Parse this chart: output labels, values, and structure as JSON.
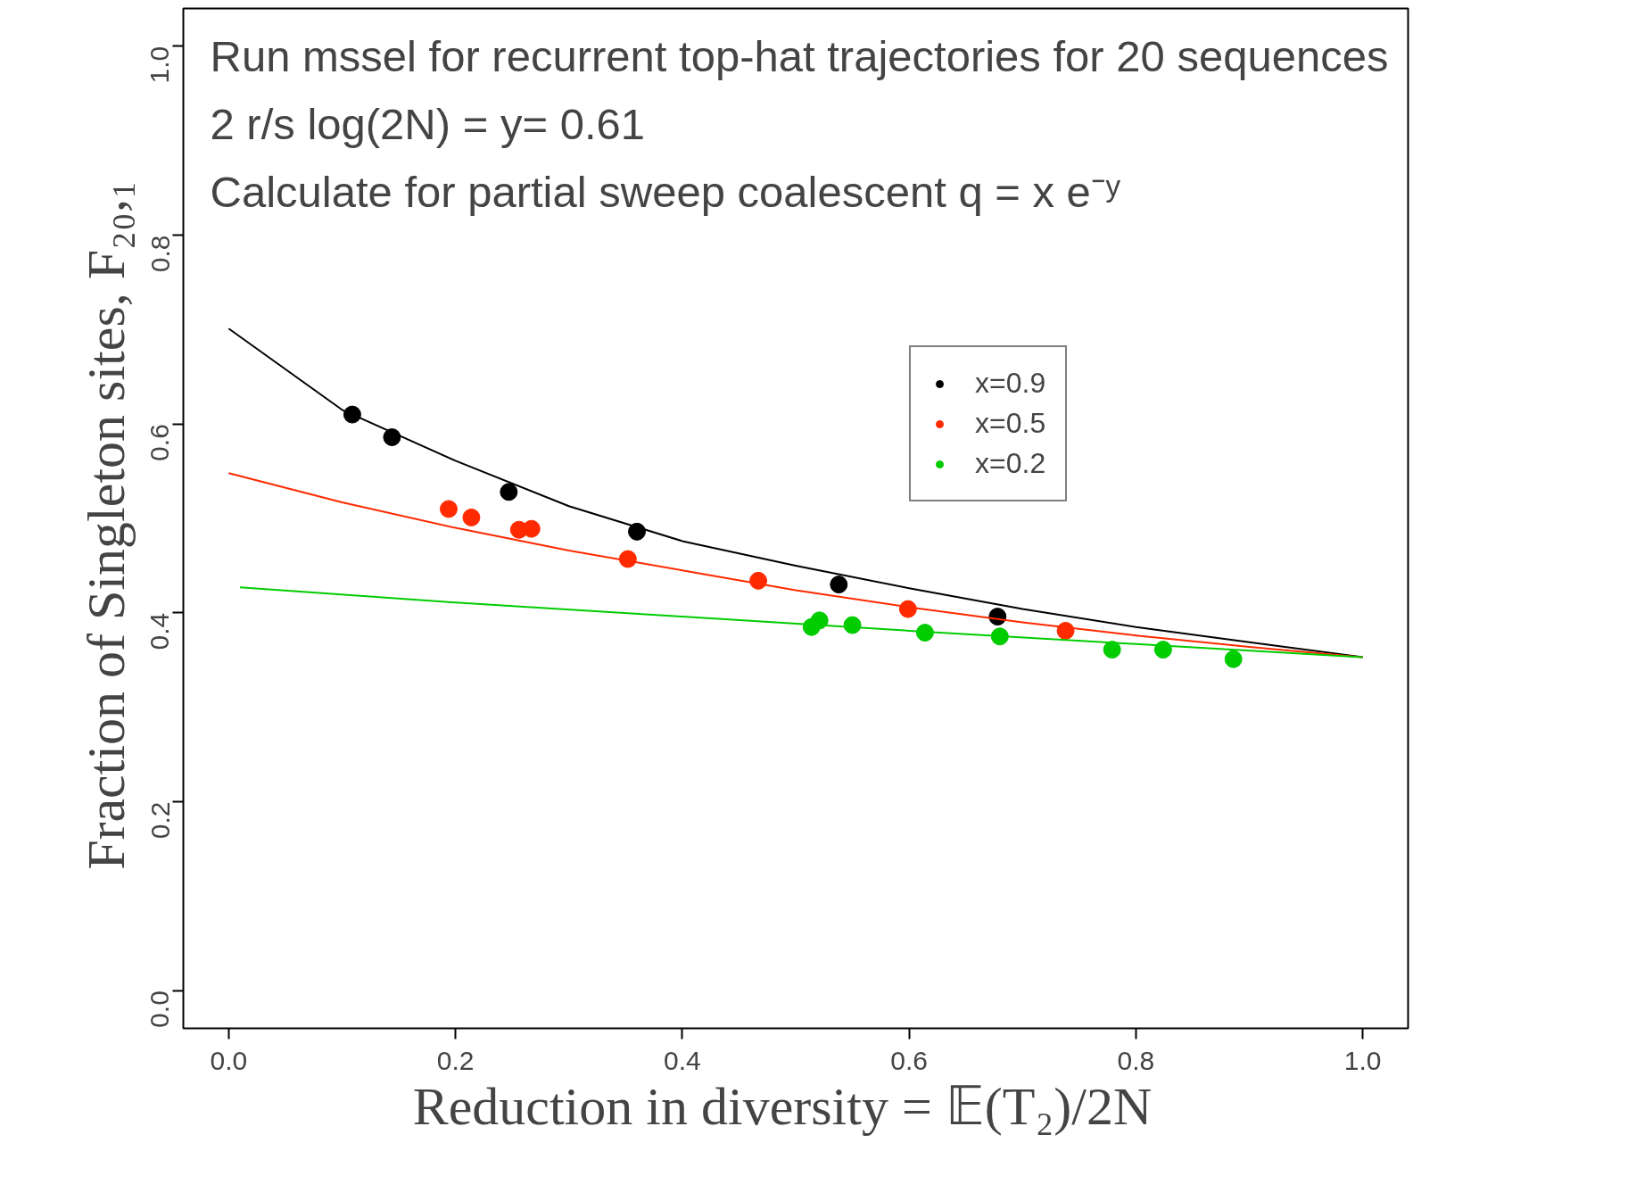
{
  "chart_data": {
    "type": "scatter",
    "xlabel": "Reduction in diversity   = 𝔼(T₂)/2N",
    "ylabel": "Fraction of Singleton sites,  F₂₀,₁",
    "annotations": [
      "Run mssel for recurrent top-hat trajectories for 20 sequences",
      "2 r/s log(2N) = y= 0.61",
      "Calculate for partial sweep coalescent q = x e⁻ʸ"
    ],
    "xlim": [
      -0.04,
      1.04
    ],
    "ylim": [
      -0.04,
      1.04
    ],
    "xticks": [
      {
        "value": 0,
        "label": "0.0"
      },
      0.2,
      0.4,
      0.6,
      0.8,
      {
        "value": 1,
        "label": "1.0"
      }
    ],
    "yticks": [
      {
        "value": 0,
        "label": "0.0"
      },
      0.2,
      0.4,
      0.6,
      0.8,
      {
        "value": 1,
        "label": "1.0"
      }
    ],
    "grid": false,
    "legend": "right",
    "marker": "circle",
    "series": [
      {
        "name": "x=0.9",
        "color": "#000000",
        "x": [
          0.109,
          0.144,
          0.247,
          0.36,
          0.538,
          0.678
        ],
        "values": [
          0.61,
          0.586,
          0.528,
          0.486,
          0.43,
          0.396
        ]
      },
      {
        "name": "x=0.5",
        "color": "#ff2a00",
        "x": [
          0.194,
          0.214,
          0.256,
          0.267,
          0.352,
          0.467,
          0.599,
          0.738
        ],
        "values": [
          0.51,
          0.501,
          0.488,
          0.489,
          0.457,
          0.434,
          0.404,
          0.381
        ]
      },
      {
        "name": "x=0.2",
        "color": "#00cc00",
        "x": [
          0.514,
          0.521,
          0.55,
          0.614,
          0.68,
          0.779,
          0.824,
          0.886
        ],
        "values": [
          0.385,
          0.392,
          0.387,
          0.379,
          0.375,
          0.361,
          0.361,
          0.351
        ]
      },
      {
        "type": "line",
        "marker": "none",
        "color": "#000000",
        "x": [
          0,
          0.1,
          0.2,
          0.3,
          0.4,
          0.5,
          0.6,
          0.7,
          0.8,
          0.9,
          1.0
        ],
        "values": [
          0.701,
          0.615,
          0.561,
          0.513,
          0.476,
          0.45,
          0.426,
          0.404,
          0.385,
          0.369,
          0.353
        ]
      },
      {
        "type": "line",
        "marker": "none",
        "color": "#ff2a00",
        "x": [
          0,
          0.1,
          0.2,
          0.3,
          0.4,
          0.5,
          0.6,
          0.7,
          0.8,
          0.9,
          1.0
        ],
        "values": [
          0.548,
          0.517,
          0.49,
          0.466,
          0.445,
          0.424,
          0.406,
          0.39,
          0.376,
          0.364,
          0.353
        ]
      },
      {
        "type": "line",
        "marker": "none",
        "color": "#00cc00",
        "x": [
          0.01,
          0.2,
          0.4,
          0.6,
          0.8,
          1.0
        ],
        "values": [
          0.427,
          0.411,
          0.396,
          0.381,
          0.367,
          0.353
        ]
      }
    ]
  }
}
